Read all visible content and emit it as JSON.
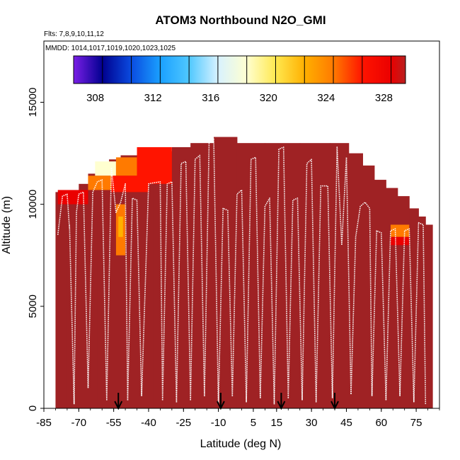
{
  "chart_data": {
    "type": "heatmap",
    "title": "ATOM3 Northbound N2O_GMI",
    "flights_label": "Flts: 7,8,9,10,11,12",
    "mmdd_label": "MMDD: 1014,1017,1019,1020,1023,1025",
    "xlabel": "Latitude (deg N)",
    "ylabel": "Altitude (m)",
    "xlim": [
      -85,
      85
    ],
    "ylim": [
      0,
      18000
    ],
    "x_ticks": [
      -85,
      -70,
      -55,
      -40,
      -25,
      -10,
      5,
      15,
      30,
      45,
      60,
      75
    ],
    "y_ticks": [
      0,
      5000,
      10000,
      15000
    ],
    "colorbar": {
      "min": 306.5,
      "max": 329.5,
      "ticks": [
        308,
        312,
        316,
        320,
        324,
        328
      ],
      "colors": [
        "#7a1ee6",
        "#2a10d0",
        "#00008f",
        "#0a4ce0",
        "#1aa0ff",
        "#50c8ff",
        "#d8f2ff",
        "#ffffd0",
        "#ffe850",
        "#ffb000",
        "#ff7a00",
        "#ff1400",
        "#ea0000",
        "#b82020",
        "#9a2424"
      ],
      "boundaries": [
        308.5,
        310.5,
        312.5,
        314.5,
        316.5,
        318.5,
        320.5,
        322.5,
        324.5,
        326.5,
        328.5
      ]
    },
    "field_profile": [
      {
        "lat": -80,
        "top_alt": 10600
      },
      {
        "lat": -75,
        "top_alt": 10600
      },
      {
        "lat": -70,
        "top_alt": 11000
      },
      {
        "lat": -66,
        "top_alt": 11500
      },
      {
        "lat": -62,
        "top_alt": 11900
      },
      {
        "lat": -57,
        "top_alt": 12200
      },
      {
        "lat": -52,
        "top_alt": 12400
      },
      {
        "lat": -45,
        "top_alt": 12500
      },
      {
        "lat": -38,
        "top_alt": 12600
      },
      {
        "lat": -30,
        "top_alt": 12800
      },
      {
        "lat": -22,
        "top_alt": 13000
      },
      {
        "lat": -12,
        "top_alt": 13300
      },
      {
        "lat": -2,
        "top_alt": 13000
      },
      {
        "lat": 10,
        "top_alt": 13000
      },
      {
        "lat": 25,
        "top_alt": 13000
      },
      {
        "lat": 38,
        "top_alt": 13000
      },
      {
        "lat": 46,
        "top_alt": 12500
      },
      {
        "lat": 52,
        "top_alt": 11900
      },
      {
        "lat": 57,
        "top_alt": 11200
      },
      {
        "lat": 62,
        "top_alt": 10800
      },
      {
        "lat": 67,
        "top_alt": 10400
      },
      {
        "lat": 72,
        "top_alt": 9800
      },
      {
        "lat": 76,
        "top_alt": 9400
      },
      {
        "lat": 79,
        "top_alt": 9000
      }
    ],
    "field_patches": [
      {
        "lat0": -63,
        "lat1": -54,
        "alt0": 11400,
        "alt1": 12100,
        "value": 318
      },
      {
        "lat0": -54,
        "lat1": -45,
        "alt0": 11400,
        "alt1": 12300,
        "value": 323
      },
      {
        "lat0": -45,
        "lat1": -30,
        "alt0": 11000,
        "alt1": 12800,
        "value": 325
      },
      {
        "lat0": -66,
        "lat1": -56,
        "alt0": 10700,
        "alt1": 11400,
        "value": 324
      },
      {
        "lat0": -56,
        "lat1": -40,
        "alt0": 10600,
        "alt1": 11400,
        "value": 326
      },
      {
        "lat0": -79,
        "lat1": -66,
        "alt0": 10000,
        "alt1": 10700,
        "value": 327
      },
      {
        "lat0": -54,
        "lat1": -50,
        "alt0": 7500,
        "alt1": 10000,
        "value": 324
      },
      {
        "lat0": -53,
        "lat1": -51,
        "alt0": 8400,
        "alt1": 9400,
        "value": 322
      },
      {
        "lat0": 64,
        "lat1": 72,
        "alt0": 8400,
        "alt1": 9000,
        "value": 324
      },
      {
        "lat0": 64,
        "lat1": 72,
        "alt0": 8000,
        "alt1": 8400,
        "value": 328
      }
    ],
    "flight_segments": [
      [
        -79,
        8500,
        -77,
        10400,
        -75,
        10500,
        -74,
        8800
      ],
      [
        -74,
        9000,
        -72,
        200,
        -71,
        9600,
        -70,
        10500,
        -68,
        10600,
        -66,
        1000
      ],
      [
        -66,
        1000,
        -64,
        10600,
        -62,
        11100,
        -60,
        11200,
        -58,
        400
      ],
      [
        -58,
        400,
        -56,
        11800,
        -54,
        9600,
        -52,
        10100,
        -50,
        11000,
        -49,
        400
      ],
      [
        -49,
        400,
        -47,
        10300,
        -45,
        10200,
        -43,
        600
      ],
      [
        -43,
        600,
        -40,
        11000,
        -38,
        11050,
        -35,
        11100,
        -34,
        400
      ],
      [
        -34,
        400,
        -32,
        11000,
        -30,
        11100,
        -28,
        300
      ],
      [
        -28,
        300,
        -26,
        12000,
        -24,
        12100,
        -22,
        400
      ],
      [
        -22,
        400,
        -20,
        12200,
        -18,
        12400,
        -16,
        600
      ],
      [
        -16,
        600,
        -14,
        13100,
        -12,
        13200,
        -10,
        200
      ],
      [
        -10,
        200,
        -8,
        9800,
        -6,
        9700,
        -4,
        600
      ],
      [
        -4,
        600,
        -2,
        10500,
        0,
        10700,
        2,
        300
      ],
      [
        2,
        300,
        4,
        12200,
        6,
        12300,
        8,
        500
      ],
      [
        8,
        500,
        10,
        9900,
        12,
        10300,
        14,
        200
      ],
      [
        14,
        200,
        16,
        12700,
        18,
        12800,
        20,
        500
      ],
      [
        20,
        500,
        22,
        10200,
        24,
        10300,
        26,
        400
      ],
      [
        26,
        400,
        28,
        12000,
        30,
        12200,
        32,
        300
      ],
      [
        32,
        300,
        34,
        10900,
        37,
        10900,
        39,
        500
      ],
      [
        39,
        500,
        41,
        12800,
        43,
        8000,
        45,
        12300,
        47,
        700
      ],
      [
        47,
        700,
        49,
        8400,
        51,
        9900,
        53,
        10100,
        55,
        9800,
        56,
        600
      ],
      [
        56,
        600,
        58,
        8700,
        60,
        8600,
        62,
        400
      ],
      [
        62,
        400,
        64,
        8700,
        66,
        8800,
        68,
        600
      ],
      [
        68,
        600,
        70,
        8700,
        72,
        8800,
        74,
        300
      ],
      [
        74,
        300,
        76,
        9100,
        78,
        9000,
        79,
        200
      ]
    ],
    "arrows_lat": [
      -53,
      -9,
      17,
      40
    ]
  }
}
